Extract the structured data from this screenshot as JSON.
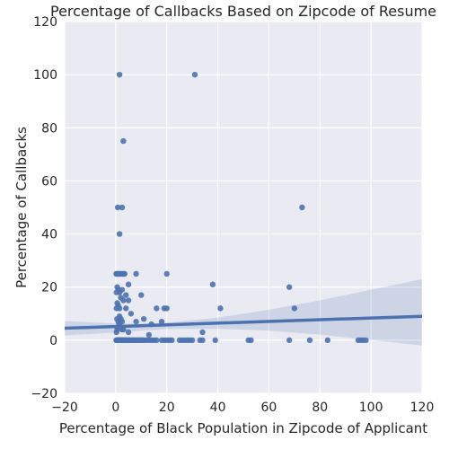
{
  "chart_data": {
    "type": "scatter",
    "title": "Percentage of Callbacks Based on Zipcode of Resume",
    "xlabel": "Percentage of Black Population in Zipcode of Applicant",
    "ylabel": "Percentage of Callbacks",
    "xlim": [
      -20,
      120
    ],
    "ylim": [
      -20,
      120
    ],
    "xticks": [
      -20,
      0,
      20,
      40,
      60,
      80,
      100,
      120
    ],
    "yticks": [
      -20,
      0,
      20,
      40,
      60,
      80,
      100,
      120
    ],
    "xtick_labels": [
      "−20",
      "0",
      "20",
      "40",
      "60",
      "80",
      "100",
      "120"
    ],
    "ytick_labels": [
      "−20",
      "0",
      "20",
      "40",
      "60",
      "80",
      "100",
      "120"
    ],
    "grid": true,
    "point_color": "#4c72b0",
    "line_color": "#4c72b0",
    "band_color": "#4c72b0",
    "plot_background": "#eaeaf2",
    "points": [
      [
        0.2,
        0
      ],
      [
        0.4,
        0
      ],
      [
        0.6,
        0
      ],
      [
        0.8,
        0
      ],
      [
        1,
        0
      ],
      [
        1.2,
        0
      ],
      [
        1.4,
        0
      ],
      [
        1.6,
        0
      ],
      [
        1.8,
        0
      ],
      [
        2,
        0
      ],
      [
        2.2,
        0
      ],
      [
        2.5,
        0
      ],
      [
        2.8,
        0
      ],
      [
        3,
        0
      ],
      [
        3.3,
        0
      ],
      [
        3.6,
        0
      ],
      [
        4,
        0
      ],
      [
        4.3,
        0
      ],
      [
        4.7,
        0
      ],
      [
        5,
        0
      ],
      [
        5.5,
        0
      ],
      [
        6,
        0
      ],
      [
        6.5,
        0
      ],
      [
        7,
        0
      ],
      [
        7.5,
        0
      ],
      [
        8,
        0
      ],
      [
        8.5,
        0
      ],
      [
        9,
        0
      ],
      [
        9.5,
        0
      ],
      [
        10,
        0
      ],
      [
        10.5,
        0
      ],
      [
        11,
        0
      ],
      [
        12,
        0
      ],
      [
        13,
        0
      ],
      [
        14,
        0
      ],
      [
        15,
        0
      ],
      [
        16,
        0
      ],
      [
        18,
        0
      ],
      [
        19,
        0
      ],
      [
        20,
        0
      ],
      [
        21,
        0
      ],
      [
        22,
        0
      ],
      [
        25,
        0
      ],
      [
        26,
        0
      ],
      [
        27,
        0
      ],
      [
        28,
        0
      ],
      [
        29,
        0
      ],
      [
        30,
        0
      ],
      [
        33,
        0
      ],
      [
        34,
        0
      ],
      [
        39,
        0
      ],
      [
        52,
        0
      ],
      [
        53,
        0
      ],
      [
        68,
        0
      ],
      [
        76,
        0
      ],
      [
        83,
        0
      ],
      [
        95,
        0
      ],
      [
        96,
        0
      ],
      [
        97,
        0
      ],
      [
        98,
        0
      ],
      [
        0.3,
        3
      ],
      [
        0.6,
        4
      ],
      [
        0.9,
        5
      ],
      [
        1.3,
        6
      ],
      [
        1.8,
        5
      ],
      [
        2.5,
        4
      ],
      [
        3,
        4
      ],
      [
        5,
        3
      ],
      [
        13,
        2
      ],
      [
        14,
        6
      ],
      [
        34,
        3
      ],
      [
        0.5,
        8
      ],
      [
        1,
        7
      ],
      [
        1.5,
        9
      ],
      [
        2,
        8
      ],
      [
        2.5,
        7
      ],
      [
        4,
        12
      ],
      [
        6,
        10
      ],
      [
        8,
        7
      ],
      [
        11,
        8
      ],
      [
        16,
        12
      ],
      [
        18,
        7
      ],
      [
        0.3,
        12
      ],
      [
        0.6,
        14
      ],
      [
        1,
        13
      ],
      [
        1.5,
        12
      ],
      [
        2,
        16
      ],
      [
        3,
        15
      ],
      [
        4,
        17
      ],
      [
        5,
        15
      ],
      [
        10,
        17
      ],
      [
        19,
        12
      ],
      [
        20,
        12
      ],
      [
        41,
        12
      ],
      [
        70,
        12
      ],
      [
        0.3,
        18
      ],
      [
        0.6,
        20
      ],
      [
        1,
        19
      ],
      [
        1.5,
        18
      ],
      [
        2.5,
        19
      ],
      [
        5,
        21
      ],
      [
        38,
        21
      ],
      [
        68,
        20
      ],
      [
        0.2,
        25
      ],
      [
        0.5,
        25
      ],
      [
        0.8,
        25
      ],
      [
        1.2,
        25
      ],
      [
        1.6,
        25
      ],
      [
        2,
        25
      ],
      [
        2.5,
        25
      ],
      [
        3,
        25
      ],
      [
        3.5,
        25
      ],
      [
        8,
        25
      ],
      [
        20,
        25
      ],
      [
        1.5,
        40
      ],
      [
        0.8,
        50
      ],
      [
        2.5,
        50
      ],
      [
        73,
        50
      ],
      [
        3,
        75
      ],
      [
        1.5,
        100
      ],
      [
        31,
        100
      ]
    ],
    "regression": {
      "x": [
        -20,
        120
      ],
      "y": [
        4.5,
        9
      ]
    },
    "confidence_band": {
      "x": [
        -20,
        0,
        10,
        20,
        40,
        60,
        80,
        100,
        120
      ],
      "upper": [
        7.2,
        6.3,
        6.2,
        6.6,
        8.5,
        11.5,
        15,
        19,
        23
      ],
      "lower": [
        1.8,
        2.9,
        3.6,
        4.2,
        4.3,
        3.6,
        2.1,
        0.1,
        -2
      ]
    }
  }
}
